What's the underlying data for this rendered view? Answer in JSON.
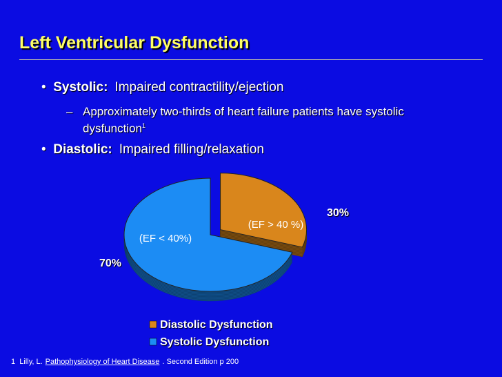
{
  "header": {
    "title": "Left Ventricular Dysfunction"
  },
  "bullets": [
    {
      "label": "Systolic:",
      "text": "Impaired contractility/ejection",
      "sub": {
        "text": "Approximately two-thirds of heart failure patients have systolic dysfunction",
        "note": "1"
      }
    },
    {
      "label": "Diastolic:",
      "text": "Impaired filling/relaxation"
    }
  ],
  "chart_data": {
    "type": "pie",
    "categories": [
      "Diastolic Dysfunction",
      "Systolic Dysfunction"
    ],
    "values": [
      30,
      70
    ],
    "value_labels": [
      "30%",
      "70%"
    ],
    "annotations": [
      "(EF > 40 %)",
      "(EF < 40%)"
    ],
    "colors": [
      "#d9861c",
      "#1c8cf4"
    ],
    "legend": "bottom"
  },
  "footnote": {
    "number": "1",
    "author": "Lilly, L.",
    "book": "Pathophysiology of Heart Disease",
    "rest": ".  Second Edition p 200"
  }
}
